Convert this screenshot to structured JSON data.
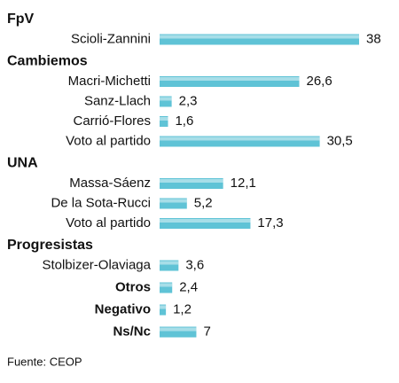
{
  "chart_data": {
    "type": "bar",
    "orientation": "horizontal",
    "color": "#5fc3d6",
    "source": "Fuente: CEOP",
    "groups": [
      {
        "name": "FpV",
        "categories": [
          "Scioli-Zannini"
        ],
        "values": [
          38
        ]
      },
      {
        "name": "Cambiemos",
        "categories": [
          "Macri-Michetti",
          "Sanz-Llach",
          "Carrió-Flores",
          "Voto al partido"
        ],
        "values": [
          26.6,
          2.3,
          1.6,
          30.5
        ],
        "value_labels": [
          "26,6",
          "2,3",
          "1,6",
          "30,5"
        ]
      },
      {
        "name": "UNA",
        "categories": [
          "Massa-Sáenz",
          "De la Sota-Rucci",
          "Voto al partido"
        ],
        "values": [
          12.1,
          5.2,
          17.3
        ],
        "value_labels": [
          "12,1",
          "5,2",
          "17,3"
        ]
      },
      {
        "name": "Progresistas",
        "categories": [
          "Stolbizer-Olaviaga"
        ],
        "values": [
          3.6
        ],
        "value_labels": [
          "3,6"
        ]
      },
      {
        "categories": [
          "Otros"
        ],
        "values": [
          2.4
        ],
        "value_labels": [
          "2,4"
        ]
      },
      {
        "categories": [
          "Negativo"
        ],
        "values": [
          1.2
        ],
        "value_labels": [
          "1,2"
        ]
      },
      {
        "categories": [
          "Ns/Nc"
        ],
        "values": [
          7
        ]
      }
    ]
  }
}
